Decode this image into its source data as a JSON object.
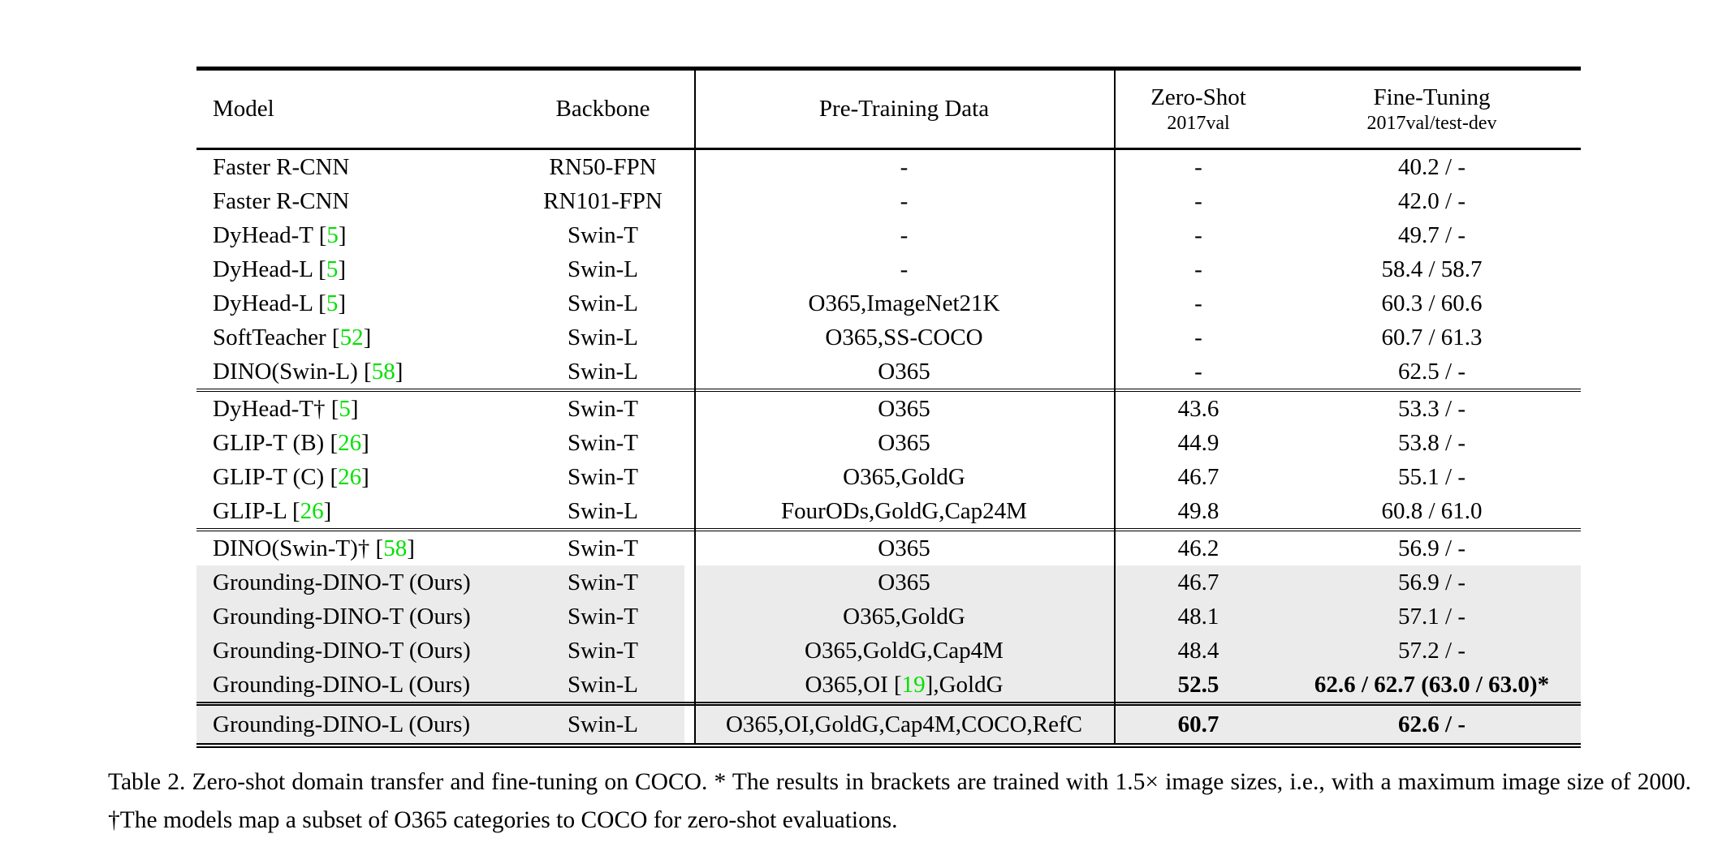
{
  "colors": {
    "citation_green": "#00e100",
    "row_highlight": "#ebebeb"
  },
  "table": {
    "header": {
      "model": "Model",
      "backbone": "Backbone",
      "pretrain": "Pre-Training Data",
      "zero_shot_title": "Zero-Shot",
      "zero_shot_sub": "2017val",
      "fine_tuning_title": "Fine-Tuning",
      "fine_tuning_sub": "2017val/test-dev"
    },
    "sections": [
      {
        "rows": [
          {
            "model": "Faster R-CNN",
            "backbone": "RN50-FPN",
            "pretrain": "-",
            "zero_shot": "-",
            "fine_tuning": "40.2 / -",
            "highlight": false,
            "bold": false
          },
          {
            "model": "Faster R-CNN",
            "backbone": "RN101-FPN",
            "pretrain": "-",
            "zero_shot": "-",
            "fine_tuning": "42.0 / -",
            "highlight": false,
            "bold": false
          },
          {
            "model": "DyHead-T [[5]]",
            "backbone": "Swin-T",
            "pretrain": "-",
            "zero_shot": "-",
            "fine_tuning": "49.7 / -",
            "highlight": false,
            "bold": false
          },
          {
            "model": "DyHead-L [[5]]",
            "backbone": "Swin-L",
            "pretrain": "-",
            "zero_shot": "-",
            "fine_tuning": "58.4 / 58.7",
            "highlight": false,
            "bold": false
          },
          {
            "model": "DyHead-L [[5]]",
            "backbone": "Swin-L",
            "pretrain": "O365,ImageNet21K",
            "zero_shot": "-",
            "fine_tuning": "60.3 / 60.6",
            "highlight": false,
            "bold": false
          },
          {
            "model": "SoftTeacher [[52]]",
            "backbone": "Swin-L",
            "pretrain": "O365,SS-COCO",
            "zero_shot": "-",
            "fine_tuning": "60.7 / 61.3",
            "highlight": false,
            "bold": false
          },
          {
            "model": "DINO(Swin-L) [[58]]",
            "backbone": "Swin-L",
            "pretrain": "O365",
            "zero_shot": "-",
            "fine_tuning": "62.5 / -",
            "highlight": false,
            "bold": false
          }
        ]
      },
      {
        "rows": [
          {
            "model": "DyHead-T† [[5]]",
            "backbone": "Swin-T",
            "pretrain": "O365",
            "zero_shot": "43.6",
            "fine_tuning": "53.3 / -",
            "highlight": false,
            "bold": false
          },
          {
            "model": "GLIP-T (B) [[26]]",
            "backbone": "Swin-T",
            "pretrain": "O365",
            "zero_shot": "44.9",
            "fine_tuning": "53.8 / -",
            "highlight": false,
            "bold": false
          },
          {
            "model": "GLIP-T (C) [[26]]",
            "backbone": "Swin-T",
            "pretrain": "O365,GoldG",
            "zero_shot": "46.7",
            "fine_tuning": "55.1 / -",
            "highlight": false,
            "bold": false
          },
          {
            "model": "GLIP-L [[26]]",
            "backbone": "Swin-L",
            "pretrain": "FourODs,GoldG,Cap24M",
            "zero_shot": "49.8",
            "fine_tuning": "60.8 / 61.0",
            "highlight": false,
            "bold": false
          }
        ]
      },
      {
        "rows": [
          {
            "model": "DINO(Swin-T)† [[58]]",
            "backbone": "Swin-T",
            "pretrain": "O365",
            "zero_shot": "46.2",
            "fine_tuning": "56.9 / -",
            "highlight": false,
            "bold": false
          },
          {
            "model": "Grounding-DINO-T (Ours)",
            "backbone": "Swin-T",
            "pretrain": "O365",
            "zero_shot": "46.7",
            "fine_tuning": "56.9 / -",
            "highlight": true,
            "bold": false
          },
          {
            "model": "Grounding-DINO-T (Ours)",
            "backbone": "Swin-T",
            "pretrain": "O365,GoldG",
            "zero_shot": "48.1",
            "fine_tuning": "57.1 / -",
            "highlight": true,
            "bold": false
          },
          {
            "model": "Grounding-DINO-T (Ours)",
            "backbone": "Swin-T",
            "pretrain": "O365,GoldG,Cap4M",
            "zero_shot": "48.4",
            "fine_tuning": "57.2 / -",
            "highlight": true,
            "bold": false
          },
          {
            "model": "Grounding-DINO-L (Ours)",
            "backbone": "Swin-L",
            "pretrain": "O365,OI [[19]],GoldG",
            "zero_shot": "52.5",
            "fine_tuning": "62.6 / 62.7 (63.0 / 63.0)*",
            "highlight": true,
            "bold": true
          }
        ]
      },
      {
        "rows": [
          {
            "model": "Grounding-DINO-L (Ours)",
            "backbone": "Swin-L",
            "pretrain": "O365,OI,GoldG,Cap4M,COCO,RefC",
            "zero_shot": "60.7",
            "fine_tuning": "62.6 / -",
            "highlight": true,
            "bold": true
          }
        ]
      }
    ]
  },
  "caption": "Table 2.  Zero-shot domain transfer and fine-tuning on COCO. * The results in brackets are trained with 1.5× image sizes, i.e., with a maximum image size of 2000. †The models map a subset of O365 categories to COCO for zero-shot evaluations."
}
